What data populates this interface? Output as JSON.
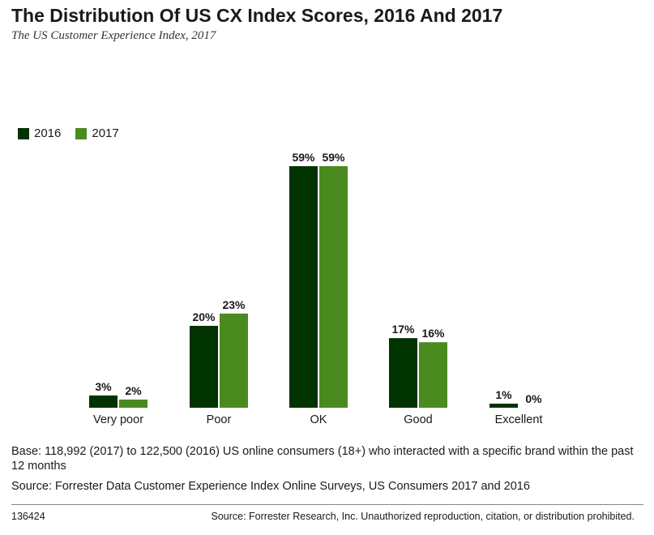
{
  "title": "The Distribution Of US CX Index Scores, 2016 And 2017",
  "subtitle": "The US Customer Experience Index, 2017",
  "colors": {
    "series_2016": "#003300",
    "series_2017": "#4a8a1f"
  },
  "chart_data": {
    "type": "bar",
    "categories": [
      "Very poor",
      "Poor",
      "OK",
      "Good",
      "Excellent"
    ],
    "series": [
      {
        "name": "2016",
        "values": [
          3,
          20,
          59,
          17,
          1
        ],
        "labels": [
          "3%",
          "20%",
          "59%",
          "17%",
          "1%"
        ]
      },
      {
        "name": "2017",
        "values": [
          2,
          23,
          59,
          16,
          0
        ],
        "labels": [
          "2%",
          "23%",
          "59%",
          "16%",
          "0%"
        ]
      }
    ],
    "ylim": [
      0,
      60
    ],
    "grid": false,
    "legend": "top-left"
  },
  "notes": {
    "base": "Base: 118,992 (2017) to 122,500 (2016) US online consumers (18+) who interacted with a specific brand within the past 12 months",
    "source": "Source: Forrester Data Customer Experience Index Online Surveys, US Consumers 2017 and 2016"
  },
  "footer": {
    "id": "136424",
    "copyright": "Source: Forrester Research, Inc. Unauthorized reproduction, citation, or distribution prohibited."
  }
}
